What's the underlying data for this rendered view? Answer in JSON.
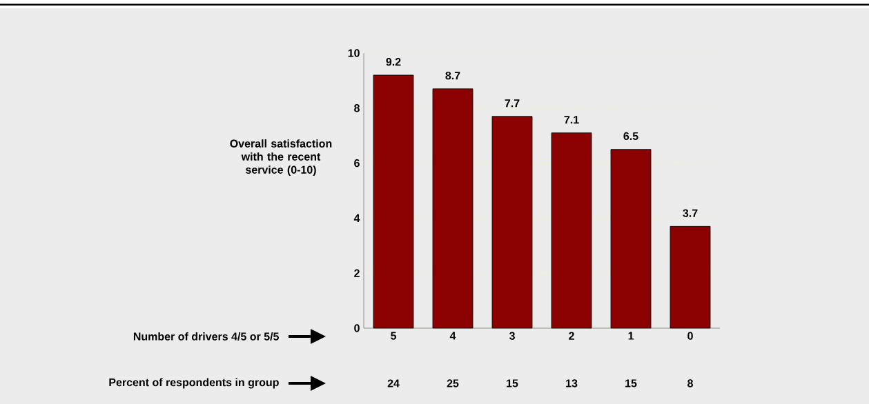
{
  "chart_data": {
    "type": "bar",
    "ylabel": "Overall satisfaction with the recent service (0-10)",
    "categories": [
      "5",
      "4",
      "3",
      "2",
      "1",
      "0"
    ],
    "values": [
      9.2,
      8.7,
      7.7,
      7.1,
      6.5,
      3.7
    ],
    "color": "#8b0000",
    "data_labels": true,
    "ylim": [
      0,
      10
    ],
    "yticks": [
      0,
      2,
      4,
      6,
      8,
      10
    ],
    "grid": "y",
    "annotations": [
      "Number of drivers 4/5 or 5/5",
      "Percent of respondents in group",
      "24",
      "25",
      "15",
      "13",
      "15",
      "8"
    ]
  }
}
